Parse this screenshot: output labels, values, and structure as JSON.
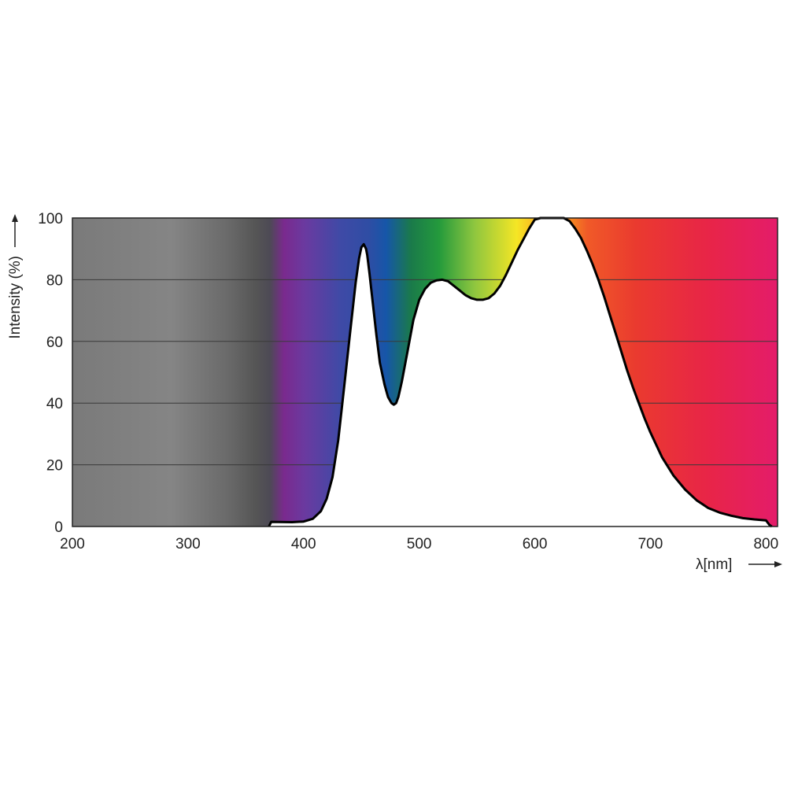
{
  "chart_data": {
    "type": "area",
    "xlabel": "λ[nm]",
    "ylabel": "Intensity (%)",
    "xlim": [
      200,
      810
    ],
    "ylim": [
      0,
      100
    ],
    "x_ticks": [
      200,
      300,
      400,
      500,
      600,
      700,
      800
    ],
    "y_ticks": [
      0,
      20,
      40,
      60,
      80,
      100
    ],
    "grid": "horizontal",
    "background": "visible spectrum gradient (grey below ~370 nm)",
    "series": [
      {
        "x": [
          370,
          372,
          390,
          400,
          408,
          415,
          420,
          425,
          430,
          435,
          440,
          445,
          448,
          450,
          452,
          454,
          455,
          457,
          460,
          463,
          466,
          470,
          473,
          476,
          478,
          480,
          482,
          485,
          490,
          495,
          500,
          505,
          510,
          515,
          520,
          525,
          530,
          535,
          540,
          545,
          550,
          555,
          560,
          565,
          570,
          575,
          580,
          585,
          590,
          595,
          600,
          605,
          610,
          615,
          620,
          625,
          630,
          635,
          640,
          645,
          650,
          655,
          660,
          665,
          670,
          675,
          680,
          685,
          690,
          695,
          700,
          710,
          720,
          730,
          740,
          750,
          760,
          770,
          780,
          790,
          800,
          803,
          805
        ],
        "y": [
          0,
          1.5,
          1.4,
          1.6,
          2.5,
          5,
          9,
          16,
          28,
          45,
          62,
          79,
          87,
          90.5,
          91.5,
          90,
          88,
          82,
          72,
          62,
          53,
          46,
          42,
          40,
          39.5,
          40,
          42,
          47,
          57,
          67,
          73.5,
          77,
          79,
          79.8,
          80,
          79.5,
          78,
          76.5,
          75,
          74,
          73.5,
          73.5,
          74,
          75.5,
          78,
          81.5,
          85.5,
          89.5,
          93,
          96.5,
          99.5,
          101.5,
          102.5,
          103,
          102.5,
          101,
          99,
          96.5,
          93.5,
          89.5,
          85,
          80,
          74.5,
          68.5,
          62.5,
          56.5,
          50.5,
          45,
          40,
          35,
          30.5,
          22.5,
          16.5,
          12,
          8.5,
          6,
          4.5,
          3.5,
          2.7,
          2.3,
          2,
          0.5,
          0
        ]
      }
    ]
  }
}
